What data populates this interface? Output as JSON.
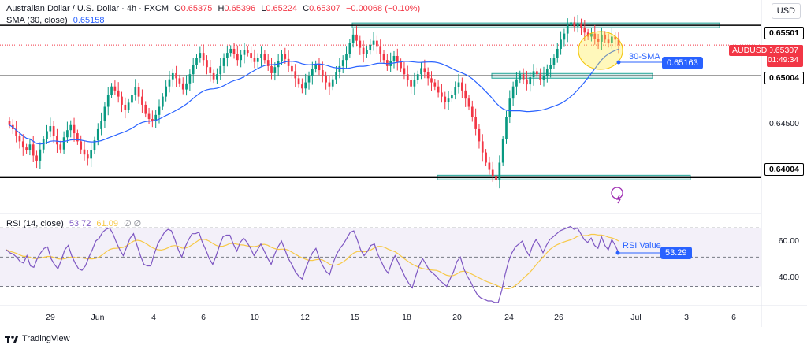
{
  "header": {
    "symbol": "Australian Dollar / U.S. Dollar · 4h · FXCM",
    "open_label": "O",
    "open": "0.65375",
    "high_label": "H",
    "high": "0.65396",
    "low_label": "L",
    "low": "0.65224",
    "close_label": "C",
    "close": "0.65307",
    "change": "−0.00068 (−0.10%)",
    "sma_label": "SMA (30, close)",
    "sma_value": "0.65158"
  },
  "currency_button": "USD",
  "ticker_badge": "AUDUSD",
  "price_badge": "0.65307",
  "countdown": "01:49:34",
  "sma_badge": "0.65163",
  "sma_note": "30-SMA",
  "rsi": {
    "label": "RSI (14, close)",
    "value": "53.72",
    "value2": "61.09",
    "extra": "∅ ∅",
    "note": "RSI Value",
    "callout": "53.29"
  },
  "price_axis": [
    "0.65501",
    "0.65004",
    "0.64500",
    "0.64004"
  ],
  "rsi_axis": [
    "60.00",
    "40.00"
  ],
  "time_axis": [
    "29",
    "Jun",
    "4",
    "6",
    "10",
    "12",
    "15",
    "18",
    "20",
    "24",
    "26",
    "Jul",
    "3",
    "6"
  ],
  "footer_brand": "TradingView",
  "colors": {
    "up": "#089981",
    "down": "#f23645",
    "sma": "#2962ff",
    "rsi": "#7e57c2",
    "rsi_ma": "#f7c948",
    "zone": "#b2dfdb"
  },
  "chart_data": {
    "type": "candlestick",
    "title": "Australian Dollar / U.S. Dollar · 4h · FXCM",
    "price_range": [
      0.6372,
      0.6575
    ],
    "horizontal_levels": [
      0.65501,
      0.65004,
      0.64004
    ],
    "close_series": [
      0.6452,
      0.6448,
      0.6441,
      0.6436,
      0.643,
      0.6427,
      0.6433,
      0.6422,
      0.6417,
      0.6428,
      0.6438,
      0.6446,
      0.6451,
      0.6441,
      0.6433,
      0.6428,
      0.644,
      0.6447,
      0.6452,
      0.6444,
      0.6436,
      0.6428,
      0.6423,
      0.6419,
      0.6427,
      0.6437,
      0.6448,
      0.6456,
      0.647,
      0.6482,
      0.649,
      0.6486,
      0.648,
      0.6472,
      0.6467,
      0.6474,
      0.6482,
      0.6489,
      0.648,
      0.6472,
      0.6463,
      0.6458,
      0.6456,
      0.6462,
      0.647,
      0.648,
      0.649,
      0.6497,
      0.6503,
      0.6498,
      0.6493,
      0.6487,
      0.6493,
      0.6502,
      0.6511,
      0.6518,
      0.6523,
      0.6516,
      0.6509,
      0.6503,
      0.6497,
      0.6502,
      0.651,
      0.6518,
      0.6523,
      0.6527,
      0.6522,
      0.6516,
      0.6521,
      0.6526,
      0.6523,
      0.6518,
      0.6514,
      0.6518,
      0.6522,
      0.6516,
      0.651,
      0.6503,
      0.6509,
      0.6515,
      0.6522,
      0.6517,
      0.651,
      0.6505,
      0.6498,
      0.6492,
      0.6488,
      0.6494,
      0.65,
      0.6507,
      0.6512,
      0.6506,
      0.65,
      0.6494,
      0.649,
      0.6497,
      0.6504,
      0.651,
      0.6516,
      0.6522,
      0.6533,
      0.6541,
      0.6535,
      0.6528,
      0.6522,
      0.6526,
      0.6531,
      0.6535,
      0.6529,
      0.6522,
      0.6516,
      0.651,
      0.6515,
      0.652,
      0.6514,
      0.6508,
      0.6502,
      0.6496,
      0.649,
      0.6496,
      0.6502,
      0.6508,
      0.6504,
      0.6498,
      0.6494,
      0.649,
      0.6484,
      0.648,
      0.6475,
      0.6478,
      0.6482,
      0.6489,
      0.6494,
      0.6486,
      0.6478,
      0.647,
      0.646,
      0.6448,
      0.6436,
      0.6425,
      0.6415,
      0.6408,
      0.6402,
      0.6398,
      0.6415,
      0.6438,
      0.646,
      0.6478,
      0.649,
      0.6497,
      0.6502,
      0.6497,
      0.6492,
      0.6499,
      0.6505,
      0.6502,
      0.6496,
      0.6501,
      0.6507,
      0.6511,
      0.6518,
      0.6527,
      0.6536,
      0.6542,
      0.655,
      0.6553,
      0.6549,
      0.6552,
      0.6548,
      0.6543,
      0.6539,
      0.6542,
      0.6537,
      0.6534,
      0.6541,
      0.6536,
      0.6533,
      0.6539,
      0.6536,
      0.6531
    ],
    "sma_period": 30,
    "rsi_range": [
      20,
      75
    ],
    "rsi_levels": [
      70,
      50,
      30
    ],
    "rsi_axis_ticks": [
      60,
      40
    ],
    "rsi_series": [
      55,
      53,
      52,
      50,
      47,
      46,
      51,
      44,
      43,
      49,
      53,
      56,
      57,
      49,
      45,
      42,
      48,
      55,
      58,
      51,
      46,
      42,
      41,
      44,
      50,
      55,
      61,
      63,
      67,
      69,
      70,
      66,
      60,
      55,
      51,
      57,
      63,
      66,
      58,
      51,
      45,
      44,
      44,
      52,
      59,
      63,
      67,
      69,
      68,
      62,
      55,
      50,
      57,
      62,
      66,
      66,
      67,
      60,
      55,
      49,
      45,
      51,
      58,
      64,
      65,
      65,
      59,
      54,
      60,
      63,
      60,
      56,
      51,
      55,
      59,
      54,
      49,
      45,
      52,
      57,
      61,
      55,
      49,
      45,
      40,
      37,
      35,
      42,
      48,
      53,
      56,
      49,
      44,
      40,
      38,
      46,
      52,
      56,
      59,
      63,
      67,
      68,
      62,
      55,
      51,
      54,
      58,
      59,
      52,
      47,
      42,
      39,
      46,
      51,
      46,
      41,
      36,
      32,
      29,
      37,
      44,
      49,
      45,
      41,
      39,
      37,
      34,
      32,
      30,
      35,
      40,
      47,
      50,
      42,
      37,
      33,
      28,
      24,
      22,
      21,
      20,
      20,
      19,
      19,
      27,
      38,
      47,
      53,
      57,
      59,
      61,
      55,
      51,
      58,
      62,
      58,
      53,
      58,
      62,
      64,
      66,
      68,
      69,
      70,
      71,
      69,
      70,
      66,
      62,
      60,
      63,
      58,
      56,
      64,
      58,
      55,
      62,
      58,
      53
    ]
  }
}
